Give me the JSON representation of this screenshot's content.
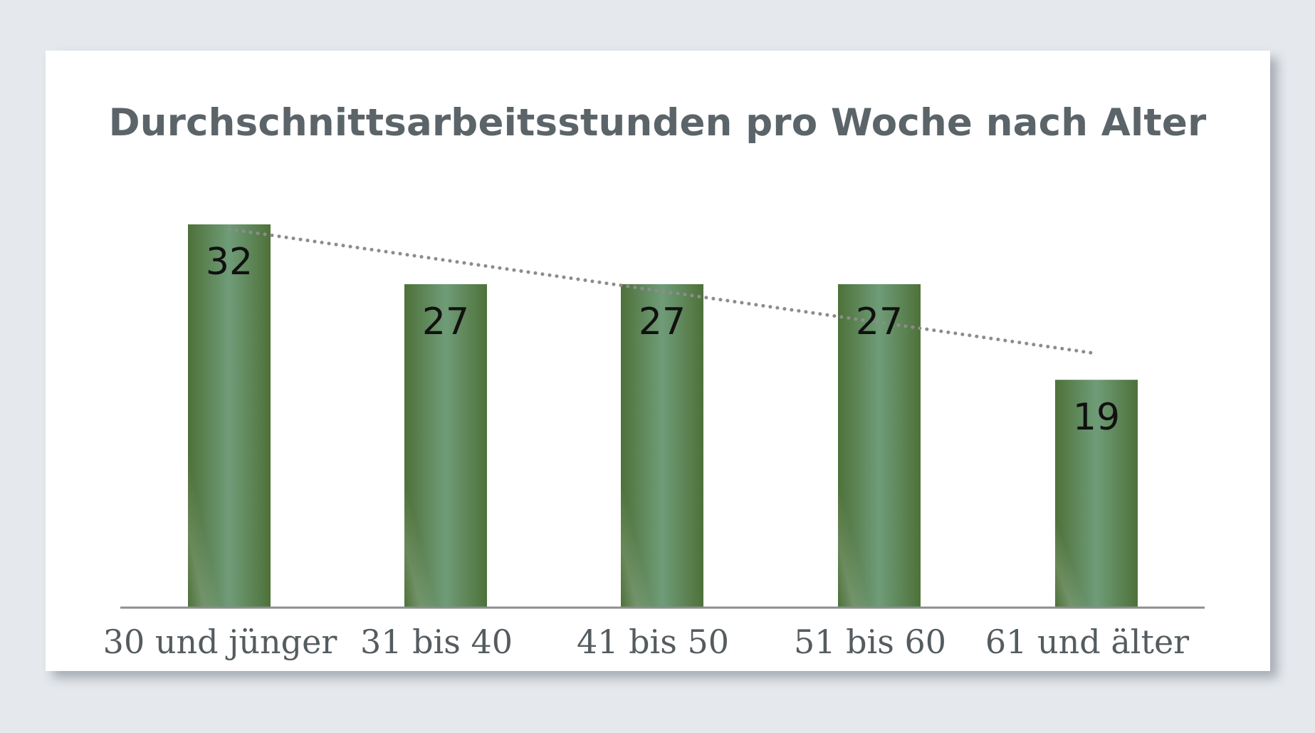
{
  "chart_data": {
    "type": "bar",
    "title": "Durchschnittsarbeitsstunden pro Woche nach Alter",
    "xlabel": "",
    "ylabel": "",
    "categories": [
      "30 und jünger",
      "31 bis 40",
      "41 bis 50",
      "51 bis 60",
      "61 und älter"
    ],
    "values": [
      32,
      27,
      27,
      27,
      19
    ],
    "data_labels": [
      "32",
      "27",
      "27",
      "27",
      "19"
    ],
    "ylim": [
      0,
      32
    ],
    "grid": false,
    "legend": "none",
    "trendline": "dotted",
    "colors": {
      "bar_dark": "#4e7139",
      "bar_light": "#6f9c78",
      "axis": "#8a8f92",
      "trendline": "#8c8c8c",
      "title": "#5b6469",
      "background": "#e5e9ed",
      "card": "#ffffff"
    }
  }
}
